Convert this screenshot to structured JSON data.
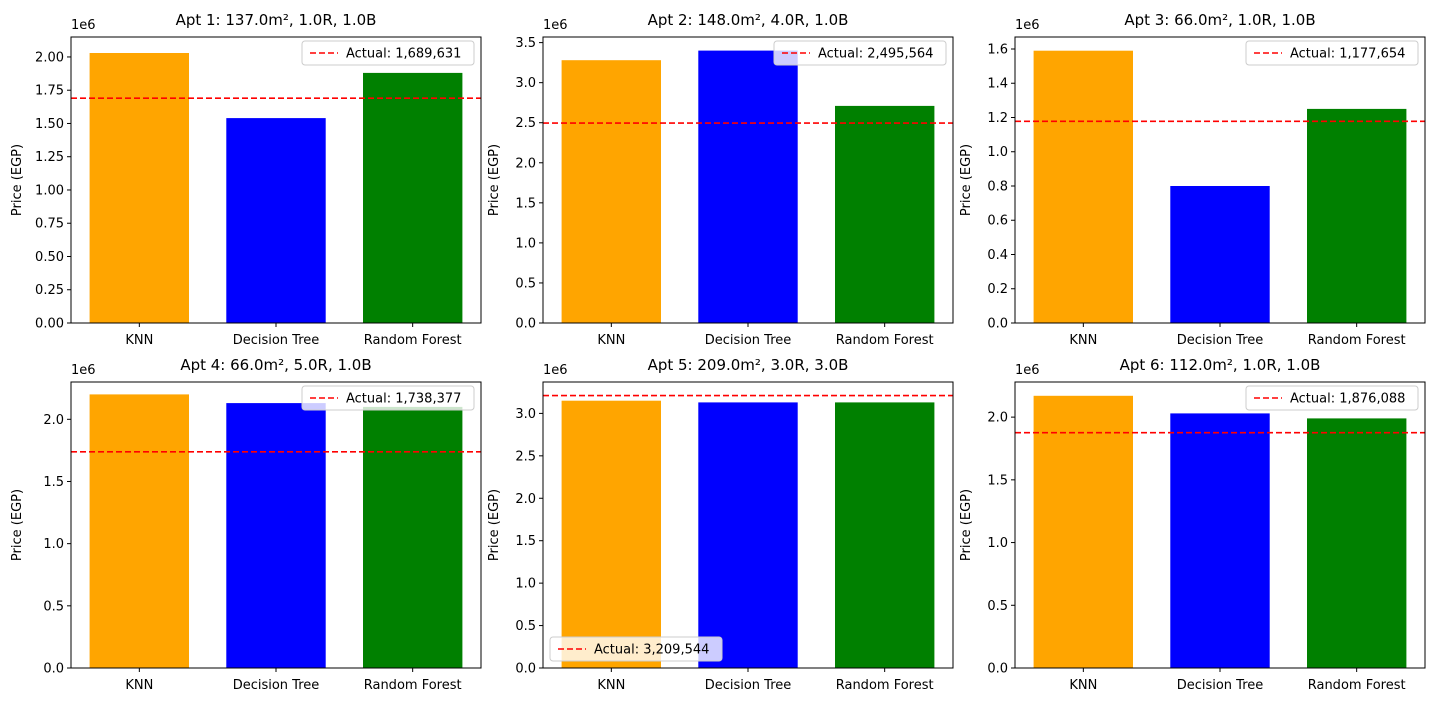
{
  "chart_data": [
    {
      "type": "bar",
      "title": "Apt 1: 137.0m², 1.0R, 1.0B",
      "categories": [
        "KNN",
        "Decision Tree",
        "Random Forest"
      ],
      "values": [
        2030000,
        1540000,
        1880000
      ],
      "colors": [
        "#ffa500",
        "#0000ff",
        "#008000"
      ],
      "actual": 1689631,
      "actual_label": "Actual: 1,689,631",
      "legend_position": "upper right",
      "ylabel": "Price (EGP)",
      "offset_text": "1e6",
      "ylim": [
        0,
        2.15
      ],
      "yticks": [
        0,
        0.25,
        0.5,
        0.75,
        1.0,
        1.25,
        1.5,
        1.75,
        2.0
      ],
      "ytick_labels": [
        "0.00",
        "0.25",
        "0.50",
        "0.75",
        "1.00",
        "1.25",
        "1.50",
        "1.75",
        "2.00"
      ]
    },
    {
      "type": "bar",
      "title": "Apt 2: 148.0m², 4.0R, 1.0B",
      "categories": [
        "KNN",
        "Decision Tree",
        "Random Forest"
      ],
      "values": [
        3280000,
        3400000,
        2710000
      ],
      "colors": [
        "#ffa500",
        "#0000ff",
        "#008000"
      ],
      "actual": 2495564,
      "actual_label": "Actual: 2,495,564",
      "legend_position": "upper right",
      "ylabel": "Price (EGP)",
      "offset_text": "1e6",
      "ylim": [
        0,
        3.57
      ],
      "yticks": [
        0,
        0.5,
        1.0,
        1.5,
        2.0,
        2.5,
        3.0,
        3.5
      ],
      "ytick_labels": [
        "0.0",
        "0.5",
        "1.0",
        "1.5",
        "2.0",
        "2.5",
        "3.0",
        "3.5"
      ]
    },
    {
      "type": "bar",
      "title": "Apt 3: 66.0m², 1.0R, 1.0B",
      "categories": [
        "KNN",
        "Decision Tree",
        "Random Forest"
      ],
      "values": [
        1590000,
        800000,
        1250000
      ],
      "colors": [
        "#ffa500",
        "#0000ff",
        "#008000"
      ],
      "actual": 1177654,
      "actual_label": "Actual: 1,177,654",
      "legend_position": "upper right",
      "ylabel": "Price (EGP)",
      "offset_text": "1e6",
      "ylim": [
        0,
        1.67
      ],
      "yticks": [
        0,
        0.2,
        0.4,
        0.6,
        0.8,
        1.0,
        1.2,
        1.4,
        1.6
      ],
      "ytick_labels": [
        "0.0",
        "0.2",
        "0.4",
        "0.6",
        "0.8",
        "1.0",
        "1.2",
        "1.4",
        "1.6"
      ]
    },
    {
      "type": "bar",
      "title": "Apt 4: 66.0m², 5.0R, 1.0B",
      "categories": [
        "KNN",
        "Decision Tree",
        "Random Forest"
      ],
      "values": [
        2200000,
        2130000,
        2100000
      ],
      "colors": [
        "#ffa500",
        "#0000ff",
        "#008000"
      ],
      "actual": 1738377,
      "actual_label": "Actual: 1,738,377",
      "legend_position": "upper right",
      "ylabel": "Price (EGP)",
      "offset_text": "1e6",
      "ylim": [
        0,
        2.3
      ],
      "yticks": [
        0,
        0.5,
        1.0,
        1.5,
        2.0
      ],
      "ytick_labels": [
        "0.0",
        "0.5",
        "1.0",
        "1.5",
        "2.0"
      ]
    },
    {
      "type": "bar",
      "title": "Apt 5: 209.0m², 3.0R, 3.0B",
      "categories": [
        "KNN",
        "Decision Tree",
        "Random Forest"
      ],
      "values": [
        3150000,
        3130000,
        3130000
      ],
      "colors": [
        "#ffa500",
        "#0000ff",
        "#008000"
      ],
      "actual": 3209544,
      "actual_label": "Actual: 3,209,544",
      "legend_position": "lower left",
      "ylabel": "Price (EGP)",
      "offset_text": "1e6",
      "ylim": [
        0,
        3.37
      ],
      "yticks": [
        0,
        0.5,
        1.0,
        1.5,
        2.0,
        2.5,
        3.0
      ],
      "ytick_labels": [
        "0.0",
        "0.5",
        "1.0",
        "1.5",
        "2.0",
        "2.5",
        "3.0"
      ]
    },
    {
      "type": "bar",
      "title": "Apt 6: 112.0m², 1.0R, 1.0B",
      "categories": [
        "KNN",
        "Decision Tree",
        "Random Forest"
      ],
      "values": [
        2170000,
        2030000,
        1990000
      ],
      "colors": [
        "#ffa500",
        "#0000ff",
        "#008000"
      ],
      "actual": 1876088,
      "actual_label": "Actual: 1,876,088",
      "legend_position": "upper right",
      "ylabel": "Price (EGP)",
      "offset_text": "1e6",
      "ylim": [
        0,
        2.28
      ],
      "yticks": [
        0,
        0.5,
        1.0,
        1.5,
        2.0
      ],
      "ytick_labels": [
        "0.0",
        "0.5",
        "1.0",
        "1.5",
        "2.0"
      ]
    }
  ]
}
